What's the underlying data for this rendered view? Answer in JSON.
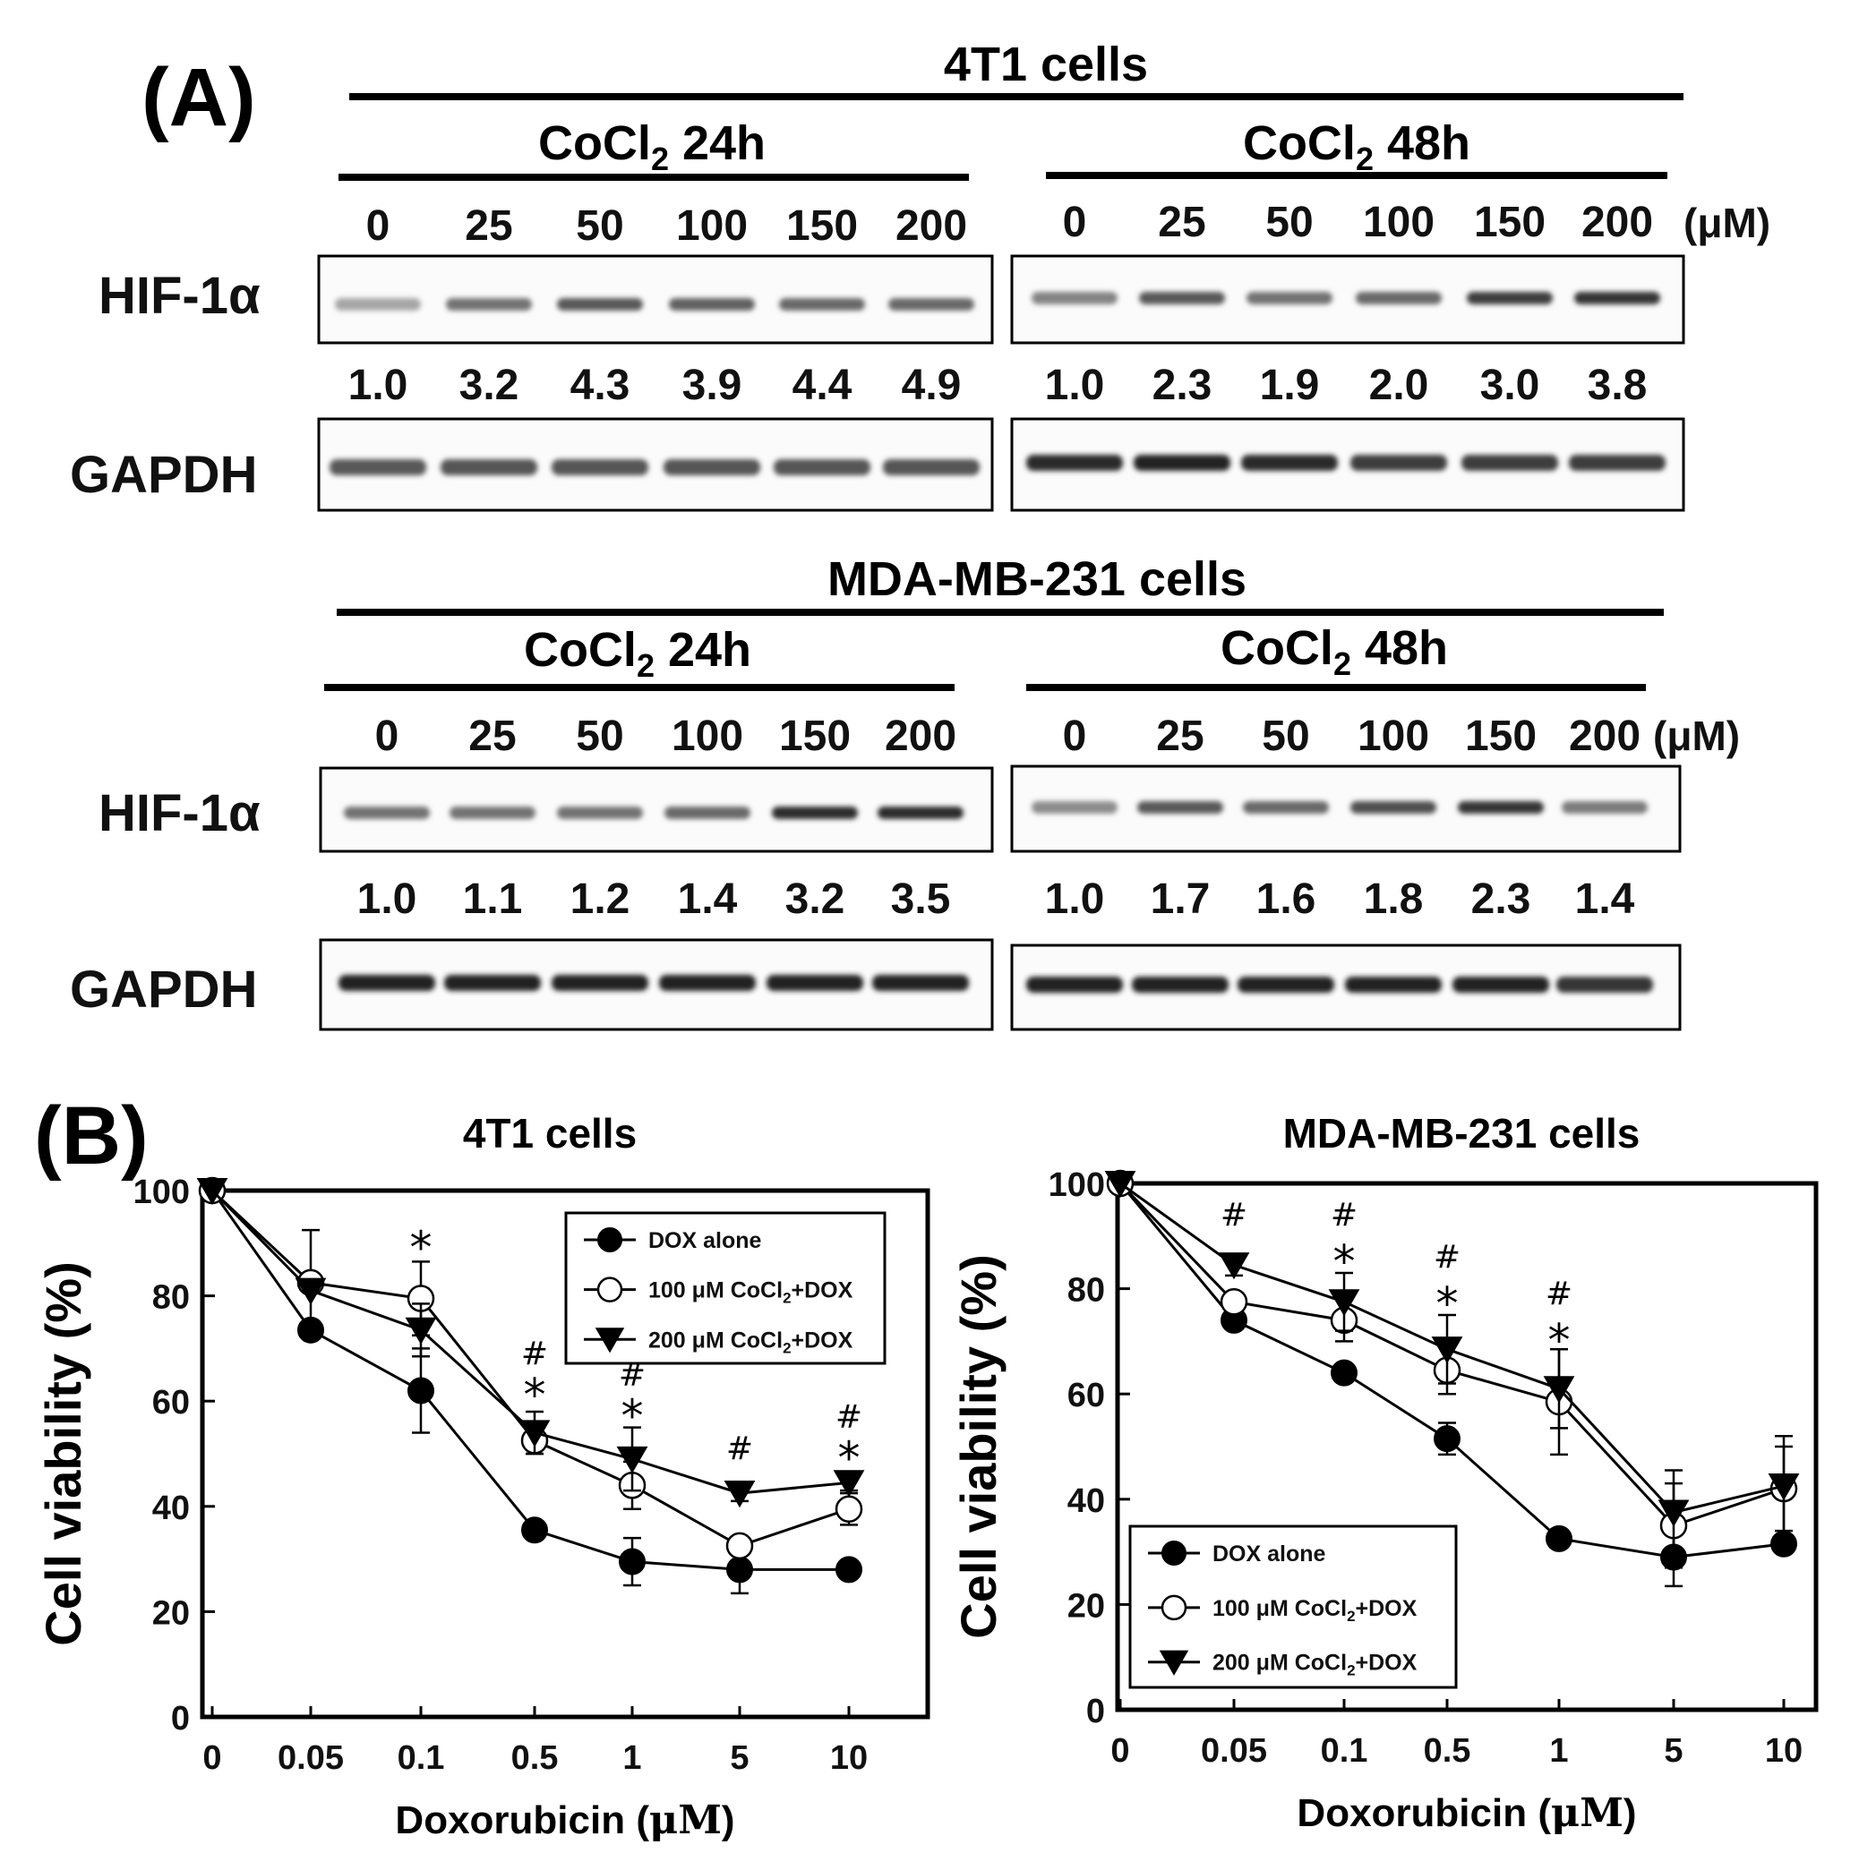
{
  "panel_a": {
    "label": "(A)",
    "unit_label": "(μM)",
    "row_labels": {
      "target": "HIF-1α",
      "control": "GAPDH"
    },
    "cell_lines": [
      {
        "title": "4T1 cells",
        "groups": [
          {
            "title_main": "CoCl",
            "title_sub": "2",
            "title_rest": " 24h",
            "doses": [
              "0",
              "25",
              "50",
              "100",
              "150",
              "200"
            ],
            "ratios": [
              "1.0",
              "3.2",
              "4.3",
              "3.9",
              "4.4",
              "4.9"
            ],
            "hif_intensity": [
              0.25,
              0.55,
              0.7,
              0.65,
              0.6,
              0.6
            ],
            "gapdh_intensity": [
              0.7,
              0.72,
              0.72,
              0.72,
              0.72,
              0.72
            ]
          },
          {
            "title_main": "CoCl",
            "title_sub": "2",
            "title_rest": " 48h",
            "doses": [
              "0",
              "25",
              "50",
              "100",
              "150",
              "200"
            ],
            "ratios": [
              "1.0",
              "2.3",
              "1.9",
              "2.0",
              "3.0",
              "3.8"
            ],
            "hif_intensity": [
              0.45,
              0.7,
              0.55,
              0.6,
              0.85,
              0.9
            ],
            "gapdh_intensity": [
              0.95,
              1.0,
              0.95,
              0.85,
              0.85,
              0.85
            ]
          }
        ]
      },
      {
        "title": "MDA-MB-231 cells",
        "groups": [
          {
            "title_main": "CoCl",
            "title_sub": "2",
            "title_rest": " 24h",
            "doses": [
              "0",
              "25",
              "50",
              "100",
              "150",
              "200"
            ],
            "ratios": [
              "1.0",
              "1.1",
              "1.2",
              "1.4",
              "3.2",
              "3.5"
            ],
            "hif_intensity": [
              0.55,
              0.55,
              0.55,
              0.6,
              0.95,
              0.95
            ],
            "gapdh_intensity": [
              1.0,
              1.0,
              1.0,
              1.0,
              1.0,
              1.0
            ]
          },
          {
            "title_main": "CoCl",
            "title_sub": "2",
            "title_rest": " 48h",
            "doses": [
              "0",
              "25",
              "50",
              "100",
              "150",
              "200"
            ],
            "ratios": [
              "1.0",
              "1.7",
              "1.6",
              "1.8",
              "2.3",
              "1.4"
            ],
            "hif_intensity": [
              0.4,
              0.7,
              0.6,
              0.75,
              0.9,
              0.5
            ],
            "gapdh_intensity": [
              1.0,
              1.0,
              1.0,
              1.0,
              1.0,
              0.9
            ]
          }
        ]
      }
    ]
  },
  "panel_b": {
    "label": "(B)"
  },
  "chart_data": [
    {
      "type": "line",
      "title": "4T1 cells",
      "xlabel_main": "Doxorubicin (",
      "xlabel_unit": "μM",
      "xlabel_end": ")",
      "ylabel": "Cell viability (%)",
      "categories": [
        "0",
        "0.05",
        "0.1",
        "0.5",
        "1",
        "5",
        "10"
      ],
      "ylim": [
        0,
        100
      ],
      "yticks": [
        "0",
        "20",
        "40",
        "60",
        "80",
        "100"
      ],
      "legend_position": "top-right",
      "series": [
        {
          "name": "DOX alone",
          "marker": "filled-circle",
          "values": [
            100,
            73.5,
            62,
            35.5,
            29.5,
            28,
            28
          ],
          "errors": [
            0,
            0,
            8,
            0,
            4.5,
            4.5,
            0
          ]
        },
        {
          "name_pre": "100 μM CoCl",
          "name_sub": "2",
          "name_post": "+DOX",
          "marker": "open-circle",
          "values": [
            100,
            82.5,
            79.5,
            52.5,
            44,
            32.5,
            39.5
          ],
          "errors": [
            0,
            10,
            7,
            2.5,
            4.5,
            0,
            3
          ]
        },
        {
          "name_pre": "200 μM CoCl",
          "name_sub": "2",
          "name_post": "+DOX",
          "marker": "filled-triangle-down",
          "values": [
            100,
            81,
            73.5,
            54,
            49,
            42.5,
            44.5
          ],
          "errors": [
            0,
            0,
            5,
            4,
            6,
            1.5,
            1.5
          ]
        }
      ],
      "annotations": [
        {
          "x": "0.1",
          "label": "*",
          "y": 90
        },
        {
          "x": "0.5",
          "label": "#",
          "y": 67
        },
        {
          "x": "0.5",
          "label": "*",
          "y": 62
        },
        {
          "x": "1",
          "label": "#",
          "y": 63
        },
        {
          "x": "1",
          "label": "*",
          "y": 58
        },
        {
          "x": "5",
          "label": "#",
          "y": 49
        },
        {
          "x": "10",
          "label": "#",
          "y": 55
        },
        {
          "x": "10",
          "label": "*",
          "y": 50
        }
      ]
    },
    {
      "type": "line",
      "title": "MDA-MB-231 cells",
      "xlabel_main": "Doxorubicin (",
      "xlabel_unit": "μM",
      "xlabel_end": ")",
      "ylabel": "Cell viability (%)",
      "categories": [
        "0",
        "0.05",
        "0.1",
        "0.5",
        "1",
        "5",
        "10"
      ],
      "ylim": [
        0,
        100
      ],
      "yticks": [
        "0",
        "20",
        "40",
        "60",
        "80",
        "100"
      ],
      "legend_position": "bottom-left",
      "series": [
        {
          "name": "DOX alone",
          "marker": "filled-circle",
          "values": [
            100,
            74,
            64,
            51.5,
            32.5,
            29,
            31.5
          ],
          "errors": [
            0,
            0,
            0,
            3,
            0,
            5.5,
            0
          ]
        },
        {
          "name_pre": "100 μM CoCl",
          "name_sub": "2",
          "name_post": "+DOX",
          "marker": "open-circle",
          "values": [
            100,
            77.5,
            74,
            64.5,
            58.5,
            35,
            42
          ],
          "errors": [
            0,
            0,
            4,
            4.5,
            10,
            8,
            8
          ]
        },
        {
          "name_pre": "200 μM CoCl",
          "name_sub": "2",
          "name_post": "+DOX",
          "marker": "filled-triangle-down",
          "values": [
            100,
            84.5,
            77.5,
            68.5,
            61,
            37.5,
            42.5
          ],
          "errors": [
            0,
            2,
            5.5,
            6.5,
            7.5,
            8,
            9.5
          ]
        }
      ],
      "annotations": [
        {
          "x": "0.05",
          "label": "#",
          "y": 92
        },
        {
          "x": "0.1",
          "label": "#",
          "y": 92
        },
        {
          "x": "0.1",
          "label": "*",
          "y": 86
        },
        {
          "x": "0.5",
          "label": "#",
          "y": 84
        },
        {
          "x": "0.5",
          "label": "*",
          "y": 78
        },
        {
          "x": "1",
          "label": "#",
          "y": 77
        },
        {
          "x": "1",
          "label": "*",
          "y": 71
        }
      ]
    }
  ]
}
